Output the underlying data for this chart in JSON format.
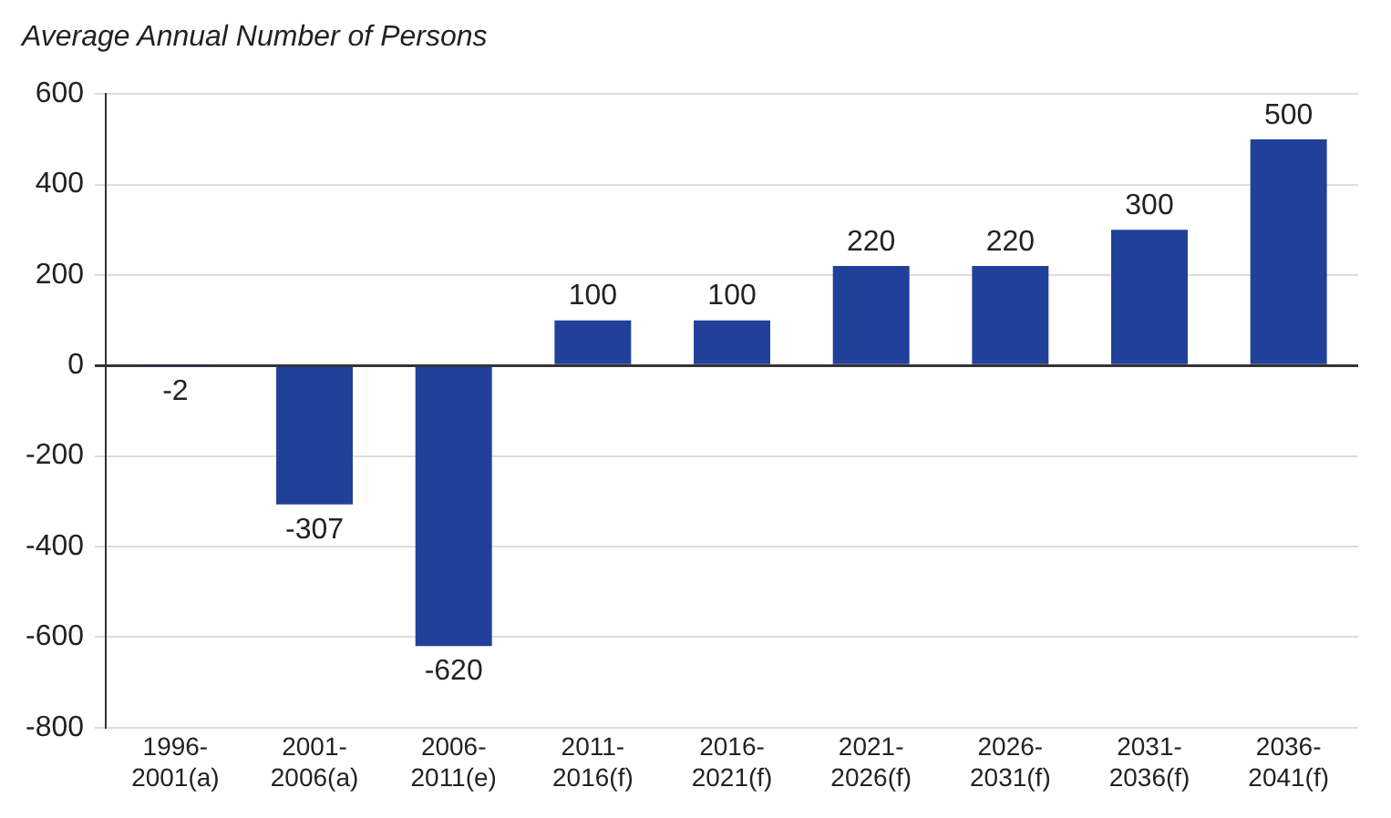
{
  "chart_data": {
    "type": "bar",
    "title": "Average Annual Number of Persons",
    "categories": [
      "1996-2001(a)",
      "2001-2006(a)",
      "2006-2011(e)",
      "2011-2016(f)",
      "2016-2021(f)",
      "2021-2026(f)",
      "2026-2031(f)",
      "2031-2036(f)",
      "2036-2041(f)"
    ],
    "values": [
      -2,
      -307,
      -620,
      100,
      100,
      220,
      220,
      300,
      500
    ],
    "color": "#21409a",
    "ylim": [
      -800,
      600
    ],
    "yticks": [
      -800,
      -600,
      -400,
      -200,
      0,
      200,
      400,
      600
    ],
    "grid": "y",
    "data_labels": true
  }
}
